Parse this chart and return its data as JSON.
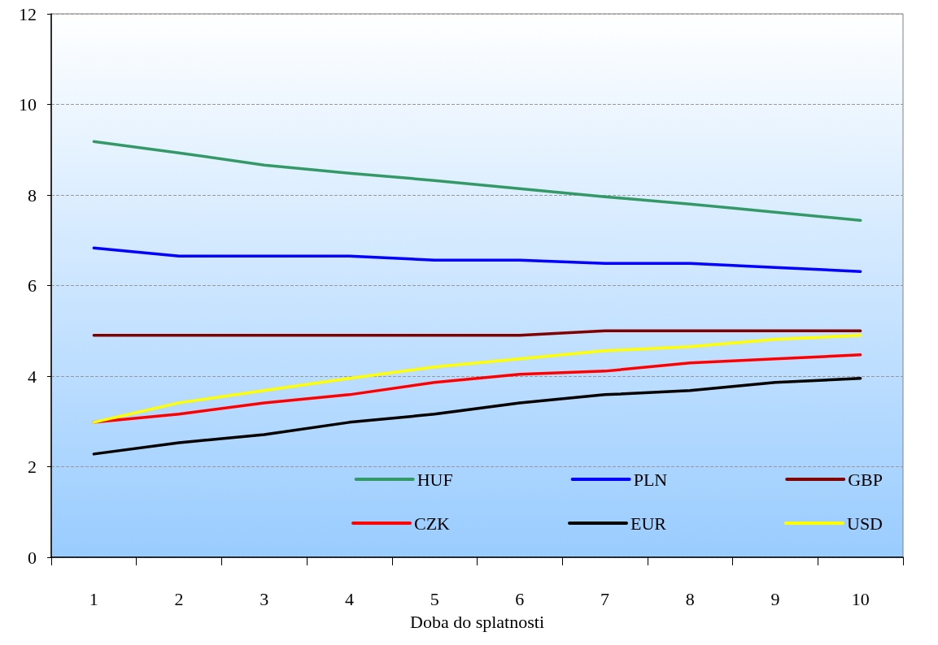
{
  "chart_data": {
    "type": "line",
    "xlabel": "Doba do splatnosti",
    "categories": [
      "1",
      "2",
      "3",
      "4",
      "5",
      "6",
      "7",
      "8",
      "9",
      "10"
    ],
    "series": [
      {
        "name": "HUF",
        "color": "#339966",
        "values": [
          9.18,
          8.93,
          8.66,
          8.48,
          8.32,
          8.14,
          7.96,
          7.8,
          7.62,
          7.44
        ]
      },
      {
        "name": "PLN",
        "color": "#0000ff",
        "values": [
          6.83,
          6.65,
          6.65,
          6.65,
          6.56,
          6.56,
          6.49,
          6.49,
          6.4,
          6.31
        ]
      },
      {
        "name": "GBP",
        "color": "#800000",
        "values": [
          4.9,
          4.9,
          4.9,
          4.9,
          4.9,
          4.9,
          5.0,
          5.0,
          5.0,
          5.0
        ]
      },
      {
        "name": "CZK",
        "color": "#ff0000",
        "values": [
          2.98,
          3.16,
          3.41,
          3.59,
          3.86,
          4.04,
          4.11,
          4.29,
          4.38,
          4.47
        ]
      },
      {
        "name": "EUR",
        "color": "#000000",
        "values": [
          2.28,
          2.53,
          2.71,
          2.98,
          3.16,
          3.41,
          3.59,
          3.68,
          3.86,
          3.95
        ]
      },
      {
        "name": "USD",
        "color": "#ffff00",
        "values": [
          2.98,
          3.41,
          3.68,
          3.95,
          4.2,
          4.38,
          4.56,
          4.65,
          4.81,
          4.9
        ]
      }
    ],
    "ylim": [
      0,
      12
    ],
    "yticks": [
      0,
      2,
      4,
      6,
      8,
      10,
      12
    ],
    "grid": "y",
    "legend": "bottom right",
    "marker": "none",
    "line_style": "solid"
  }
}
